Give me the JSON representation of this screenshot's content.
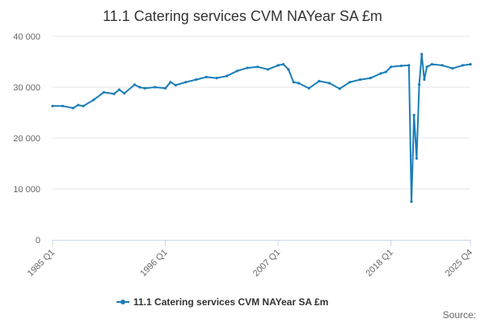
{
  "chart_data": {
    "type": "line",
    "title": "11.1 Catering services CVM NAYear SA £m",
    "xlabel": "",
    "ylabel": "",
    "ylim": [
      0,
      40000
    ],
    "y_ticks": [
      0,
      10000,
      20000,
      30000,
      40000
    ],
    "y_tick_labels": [
      "0",
      "10 000",
      "20 000",
      "30 000",
      "40 000"
    ],
    "x_tick_labels": [
      "1985 Q1",
      "1996 Q1",
      "2007 Q1",
      "2018 Q1",
      "2025 Q4"
    ],
    "grid": true,
    "legend_position": "bottom",
    "source_label": "Source:",
    "series": [
      {
        "name": "11.1 Catering services CVM NAYear SA £m",
        "color": "#1a7db8",
        "x": [
          1985.0,
          1986.0,
          1987.0,
          1987.5,
          1988.0,
          1989.0,
          1990.0,
          1991.0,
          1991.5,
          1992.0,
          1993.0,
          1993.5,
          1994.0,
          1995.0,
          1996.0,
          1996.5,
          1997.0,
          1998.0,
          1999.0,
          2000.0,
          2001.0,
          2002.0,
          2003.0,
          2004.0,
          2005.0,
          2006.0,
          2007.0,
          2007.5,
          2008.0,
          2008.5,
          2009.0,
          2010.0,
          2011.0,
          2012.0,
          2013.0,
          2014.0,
          2015.0,
          2016.0,
          2017.0,
          2017.5,
          2018.0,
          2019.0,
          2019.75,
          2020.0,
          2020.25,
          2020.5,
          2020.75,
          2021.0,
          2021.25,
          2021.5,
          2022.0,
          2023.0,
          2024.0,
          2025.0,
          2025.75
        ],
        "y": [
          26300,
          26300,
          25900,
          26500,
          26300,
          27500,
          29000,
          28700,
          29500,
          28800,
          30500,
          30000,
          29800,
          30000,
          29800,
          31000,
          30400,
          31000,
          31500,
          32000,
          31800,
          32200,
          33200,
          33800,
          34000,
          33500,
          34300,
          34500,
          33500,
          31000,
          30800,
          29800,
          31200,
          30800,
          29700,
          31000,
          31500,
          31800,
          32700,
          33000,
          34000,
          34200,
          34300,
          7500,
          24500,
          16000,
          30500,
          36500,
          31500,
          34000,
          34500,
          34300,
          33700,
          34300,
          34500
        ]
      }
    ]
  }
}
